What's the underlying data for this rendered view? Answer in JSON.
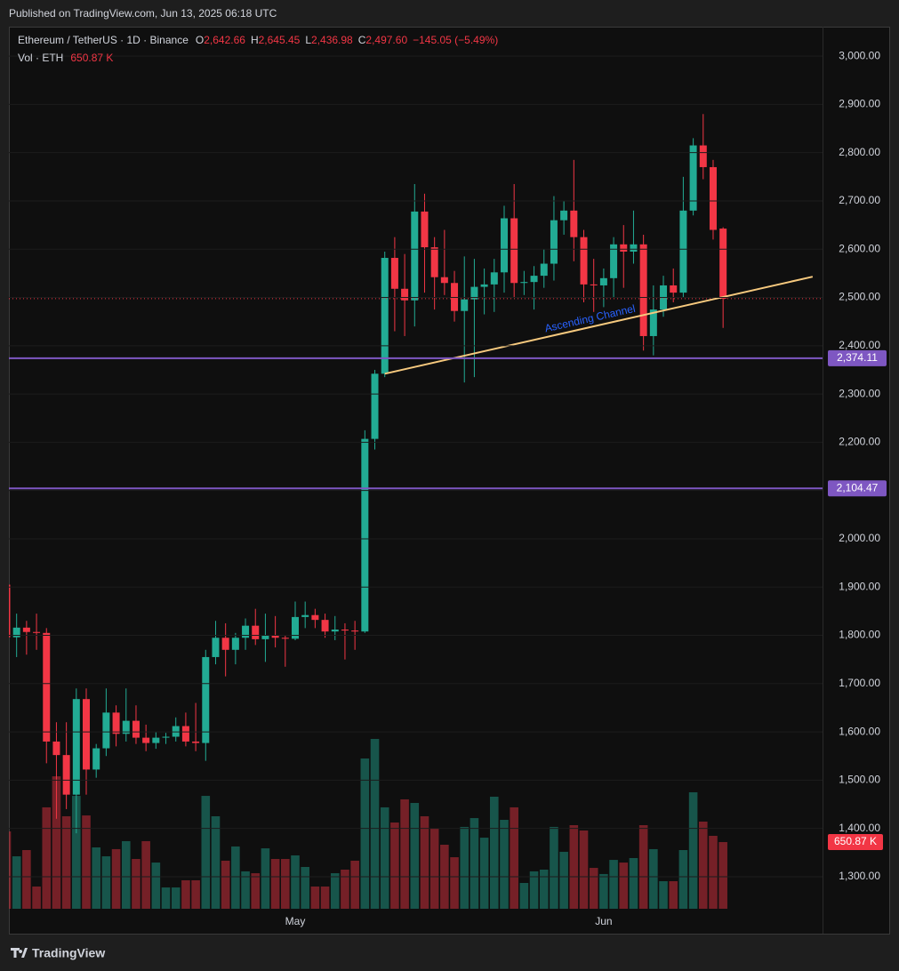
{
  "header": {
    "published": "Published on TradingView.com, Jun 13, 2025 06:18 UTC",
    "brand": "TradingView"
  },
  "chart_data": {
    "type": "candlestick",
    "legend": {
      "symbol": "Ethereum / TetherUS · 1D · Binance",
      "fields": [
        {
          "key": "O",
          "value": "2,642.66"
        },
        {
          "key": "H",
          "value": "2,645.45"
        },
        {
          "key": "L",
          "value": "2,436.98"
        },
        {
          "key": "C",
          "value": "2,497.60"
        }
      ],
      "change": "−145.05 (−5.49%)"
    },
    "categories": [
      null,
      null,
      null,
      null,
      null,
      null,
      null,
      null,
      null,
      null,
      null,
      null,
      null,
      null,
      null,
      null,
      null,
      null,
      null,
      null,
      null,
      null,
      null,
      null,
      null,
      null,
      null,
      null,
      null,
      "May",
      null,
      null,
      null,
      null,
      null,
      null,
      null,
      null,
      null,
      null,
      null,
      null,
      null,
      null,
      null,
      null,
      null,
      null,
      null,
      null,
      null,
      null,
      null,
      null,
      null,
      null,
      null,
      null,
      null,
      null,
      "Jun",
      null,
      null,
      null,
      null,
      null,
      null,
      null,
      null,
      null,
      null,
      null,
      null
    ],
    "open": [
      1905,
      1796,
      1816,
      1807,
      1805,
      1580,
      1552,
      1470,
      1668,
      1522,
      1566,
      1640,
      1596,
      1623,
      1588,
      1577,
      1588,
      1590,
      1612,
      1580,
      1577,
      1755,
      1795,
      1770,
      1795,
      1820,
      1792,
      1800,
      1795,
      1793,
      1838,
      1842,
      1832,
      1808,
      1812,
      1810,
      1808,
      2207,
      2342,
      2582,
      2518,
      2494,
      2678,
      2604,
      2542,
      2530,
      2472,
      2496,
      2522,
      2527,
      2552,
      2664,
      2530,
      2532,
      2545,
      2570,
      2660,
      2680,
      2625,
      2527,
      2525,
      2540,
      2610,
      2595,
      2610,
      2420,
      2475,
      2525,
      2510,
      2680,
      2815,
      2770,
      2642.66
    ],
    "high": [
      1910,
      1845,
      1830,
      1845,
      1815,
      1620,
      1620,
      1690,
      1690,
      1575,
      1690,
      1655,
      1690,
      1655,
      1615,
      1600,
      1598,
      1630,
      1640,
      1660,
      1770,
      1830,
      1825,
      1805,
      1835,
      1855,
      1845,
      1840,
      1800,
      1870,
      1870,
      1855,
      1845,
      1840,
      1825,
      1830,
      2225,
      2350,
      2595,
      2625,
      2590,
      2735,
      2715,
      2625,
      2640,
      2555,
      2585,
      2580,
      2560,
      2580,
      2690,
      2735,
      2555,
      2565,
      2600,
      2710,
      2700,
      2785,
      2640,
      2580,
      2560,
      2625,
      2650,
      2680,
      2630,
      2525,
      2545,
      2560,
      2750,
      2830,
      2880,
      2785,
      2645.45
    ],
    "low": [
      1790,
      1755,
      1760,
      1770,
      1535,
      1420,
      1440,
      1390,
      1470,
      1505,
      1550,
      1570,
      1580,
      1575,
      1560,
      1565,
      1575,
      1580,
      1570,
      1560,
      1540,
      1740,
      1715,
      1740,
      1770,
      1780,
      1745,
      1775,
      1735,
      1790,
      1815,
      1815,
      1795,
      1790,
      1750,
      1770,
      1805,
      2185,
      2335,
      2430,
      2420,
      2440,
      2510,
      2475,
      2505,
      2450,
      2324,
      2335,
      2465,
      2470,
      2510,
      2500,
      2505,
      2475,
      2520,
      2535,
      2630,
      2575,
      2490,
      2470,
      2480,
      2500,
      2520,
      2570,
      2390,
      2380,
      2460,
      2490,
      2500,
      2670,
      2745,
      2620,
      2436.98
    ],
    "close": [
      1796,
      1816,
      1807,
      1805,
      1580,
      1552,
      1470,
      1668,
      1522,
      1566,
      1640,
      1596,
      1623,
      1588,
      1577,
      1588,
      1590,
      1612,
      1580,
      1577,
      1755,
      1795,
      1770,
      1795,
      1820,
      1792,
      1800,
      1795,
      1793,
      1838,
      1842,
      1832,
      1808,
      1812,
      1810,
      1808,
      2207,
      2342,
      2582,
      2518,
      2494,
      2678,
      2604,
      2542,
      2530,
      2472,
      2496,
      2522,
      2527,
      2552,
      2664,
      2530,
      2532,
      2545,
      2570,
      2660,
      2680,
      2625,
      2527,
      2525,
      2540,
      2610,
      2595,
      2610,
      2420,
      2475,
      2525,
      2510,
      2680,
      2815,
      2770,
      2640,
      2497.6
    ],
    "up_color": "#22ab94",
    "down_color": "#f23645",
    "volume": {
      "name": "Vol · ETH",
      "values": [
        755,
        512,
        573,
        217,
        990,
        1293,
        903,
        1102,
        911,
        599,
        512,
        582,
        660,
        486,
        660,
        451,
        208,
        208,
        278,
        278,
        1102,
        903,
        469,
        608,
        365,
        347,
        590,
        486,
        486,
        521,
        408,
        217,
        217,
        347,
        382,
        469,
        1467,
        1658,
        990,
        842,
        1068,
        1033,
        903,
        781,
        625,
        503,
        799,
        885,
        694,
        1094,
        868,
        990,
        252,
        365,
        382,
        799,
        556,
        816,
        764,
        399,
        339,
        477,
        451,
        495,
        816,
        582,
        269,
        269,
        573,
        1137,
        851,
        712,
        650.87
      ],
      "value_labels": [
        null,
        null,
        null,
        null,
        null,
        null,
        null,
        null,
        null,
        null,
        null,
        null,
        null,
        null,
        null,
        null,
        null,
        null,
        null,
        null,
        null,
        null,
        null,
        null,
        null,
        null,
        null,
        null,
        null,
        null,
        null,
        null,
        null,
        null,
        null,
        null,
        null,
        null,
        null,
        null,
        null,
        null,
        null,
        null,
        null,
        null,
        null,
        null,
        null,
        null,
        null,
        null,
        null,
        null,
        null,
        null,
        null,
        null,
        null,
        null,
        null,
        null,
        null,
        null,
        null,
        null,
        null,
        null,
        null,
        null,
        null,
        null,
        "650.87 K"
      ]
    },
    "horizontal_lines": [
      {
        "value": 2374.11,
        "label": "2,374.11",
        "color": "#7e57c2"
      },
      {
        "value": 2104.47,
        "label": "2,104.47",
        "color": "#7e57c2"
      }
    ],
    "trendline": {
      "label": "Ascending Channel",
      "start": [
        38,
        2342
      ],
      "end": [
        81,
        2543
      ],
      "color": "#f6c97e",
      "label_color": "#2962ff"
    },
    "ylim": [
      1182,
      3061
    ],
    "yticks": [
      {
        "value": 1300,
        "label": "1,300.00"
      },
      {
        "value": 1400,
        "label": "1,400.00"
      },
      {
        "value": 1500,
        "label": "1,500.00"
      },
      {
        "value": 1600,
        "label": "1,600.00"
      },
      {
        "value": 1700,
        "label": "1,700.00"
      },
      {
        "value": 1800,
        "label": "1,800.00"
      },
      {
        "value": 1900,
        "label": "1,900.00"
      },
      {
        "value": 2000,
        "label": "2,000.00"
      },
      {
        "value": 2100,
        "label": "2,100.00"
      },
      {
        "value": 2200,
        "label": "2,200.00"
      },
      {
        "value": 2300,
        "label": "2,300.00"
      },
      {
        "value": 2400,
        "label": "2,400.00"
      },
      {
        "value": 2500,
        "label": "2,500.00"
      },
      {
        "value": 2600,
        "label": "2,600.00"
      },
      {
        "value": 2700,
        "label": "2,700.00"
      },
      {
        "value": 2800,
        "label": "2,800.00"
      },
      {
        "value": 2900,
        "label": "2,900.00"
      },
      {
        "value": 3000,
        "label": "3,000.00"
      }
    ],
    "grid": true
  }
}
